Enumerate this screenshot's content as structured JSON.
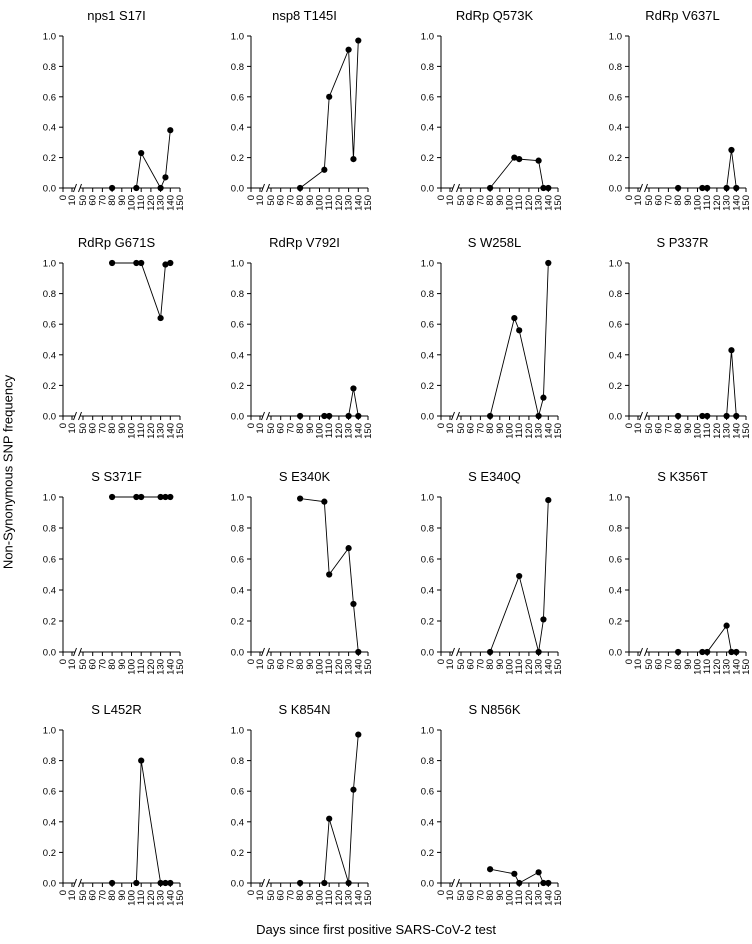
{
  "figure": {
    "ylabel": "Non-Synonymous SNP frequency",
    "xlabel": "Days since first positive SARS-CoV-2 test"
  },
  "chart_data": [
    {
      "type": "line",
      "title": "nps1 S17I",
      "x": [
        80,
        105,
        110,
        130,
        135,
        140
      ],
      "y": [
        0,
        0,
        0.23,
        0,
        0.07,
        0.38
      ],
      "xlim": [
        0,
        150
      ],
      "ylim": [
        0,
        1
      ],
      "xticks": [
        0,
        10,
        50,
        60,
        70,
        80,
        90,
        100,
        110,
        120,
        130,
        140,
        150
      ],
      "yticks": [
        "0.0",
        "0.2",
        "0.4",
        "0.6",
        "0.8",
        "1.0"
      ],
      "axis_break": true
    },
    {
      "type": "line",
      "title": "nsp8 T145I",
      "x": [
        80,
        105,
        110,
        130,
        135,
        140
      ],
      "y": [
        0,
        0.12,
        0.6,
        0.91,
        0.19,
        0.97
      ],
      "xlim": [
        0,
        150
      ],
      "ylim": [
        0,
        1
      ],
      "xticks": [
        0,
        10,
        50,
        60,
        70,
        80,
        90,
        100,
        110,
        120,
        130,
        140,
        150
      ],
      "yticks": [
        "0.0",
        "0.2",
        "0.4",
        "0.6",
        "0.8",
        "1.0"
      ],
      "axis_break": true
    },
    {
      "type": "line",
      "title": "RdRp Q573K",
      "x": [
        80,
        105,
        110,
        130,
        135,
        140
      ],
      "y": [
        0,
        0.2,
        0.19,
        0.18,
        0,
        0
      ],
      "xlim": [
        0,
        150
      ],
      "ylim": [
        0,
        1
      ],
      "xticks": [
        0,
        10,
        50,
        60,
        70,
        80,
        90,
        100,
        110,
        120,
        130,
        140,
        150
      ],
      "yticks": [
        "0.0",
        "0.2",
        "0.4",
        "0.6",
        "0.8",
        "1.0"
      ],
      "axis_break": true
    },
    {
      "type": "line",
      "title": "RdRp V637L",
      "x": [
        80,
        105,
        110,
        130,
        135,
        140
      ],
      "y": [
        0,
        0,
        0,
        0,
        0.25,
        0
      ],
      "xlim": [
        0,
        150
      ],
      "ylim": [
        0,
        1
      ],
      "xticks": [
        0,
        10,
        50,
        60,
        70,
        80,
        90,
        100,
        110,
        120,
        130,
        140,
        150
      ],
      "yticks": [
        "0.0",
        "0.2",
        "0.4",
        "0.6",
        "0.8",
        "1.0"
      ],
      "axis_break": true
    },
    {
      "type": "line",
      "title": "RdRp G671S",
      "x": [
        80,
        105,
        110,
        130,
        135,
        140
      ],
      "y": [
        1,
        1,
        1,
        0.64,
        0.99,
        1
      ],
      "xlim": [
        0,
        150
      ],
      "ylim": [
        0,
        1
      ],
      "xticks": [
        0,
        10,
        50,
        60,
        70,
        80,
        90,
        100,
        110,
        120,
        130,
        140,
        150
      ],
      "yticks": [
        "0.0",
        "0.2",
        "0.4",
        "0.6",
        "0.8",
        "1.0"
      ],
      "axis_break": true
    },
    {
      "type": "line",
      "title": "RdRp V792I",
      "x": [
        80,
        105,
        110,
        130,
        135,
        140
      ],
      "y": [
        0,
        0,
        0,
        0,
        0.18,
        0
      ],
      "xlim": [
        0,
        150
      ],
      "ylim": [
        0,
        1
      ],
      "xticks": [
        0,
        10,
        50,
        60,
        70,
        80,
        90,
        100,
        110,
        120,
        130,
        140,
        150
      ],
      "yticks": [
        "0.0",
        "0.2",
        "0.4",
        "0.6",
        "0.8",
        "1.0"
      ],
      "axis_break": true
    },
    {
      "type": "line",
      "title": "S W258L",
      "x": [
        80,
        105,
        110,
        130,
        135,
        140
      ],
      "y": [
        0,
        0.64,
        0.56,
        0,
        0.12,
        1
      ],
      "xlim": [
        0,
        150
      ],
      "ylim": [
        0,
        1
      ],
      "xticks": [
        0,
        10,
        50,
        60,
        70,
        80,
        90,
        100,
        110,
        120,
        130,
        140,
        150
      ],
      "yticks": [
        "0.0",
        "0.2",
        "0.4",
        "0.6",
        "0.8",
        "1.0"
      ],
      "axis_break": true
    },
    {
      "type": "line",
      "title": "S P337R",
      "x": [
        80,
        105,
        110,
        130,
        135,
        140
      ],
      "y": [
        0,
        0,
        0,
        0,
        0.43,
        0
      ],
      "xlim": [
        0,
        150
      ],
      "ylim": [
        0,
        1
      ],
      "xticks": [
        0,
        10,
        50,
        60,
        70,
        80,
        90,
        100,
        110,
        120,
        130,
        140,
        150
      ],
      "yticks": [
        "0.0",
        "0.2",
        "0.4",
        "0.6",
        "0.8",
        "1.0"
      ],
      "axis_break": true
    },
    {
      "type": "line",
      "title": "S S371F",
      "x": [
        80,
        105,
        110,
        130,
        135,
        140
      ],
      "y": [
        1,
        1,
        1,
        1,
        1,
        1
      ],
      "xlim": [
        0,
        150
      ],
      "ylim": [
        0,
        1
      ],
      "xticks": [
        0,
        10,
        50,
        60,
        70,
        80,
        90,
        100,
        110,
        120,
        130,
        140,
        150
      ],
      "yticks": [
        "0.0",
        "0.2",
        "0.4",
        "0.6",
        "0.8",
        "1.0"
      ],
      "axis_break": true
    },
    {
      "type": "line",
      "title": "S E340K",
      "x": [
        80,
        105,
        110,
        130,
        135,
        140
      ],
      "y": [
        0.99,
        0.97,
        0.5,
        0.67,
        0.31,
        0
      ],
      "xlim": [
        0,
        150
      ],
      "ylim": [
        0,
        1
      ],
      "xticks": [
        0,
        10,
        50,
        60,
        70,
        80,
        90,
        100,
        110,
        120,
        130,
        140,
        150
      ],
      "yticks": [
        "0.0",
        "0.2",
        "0.4",
        "0.6",
        "0.8",
        "1.0"
      ],
      "axis_break": true
    },
    {
      "type": "line",
      "title": "S E340Q",
      "x": [
        80,
        110,
        130,
        135,
        140
      ],
      "y": [
        0,
        0.49,
        0,
        0.21,
        0.98
      ],
      "xlim": [
        0,
        150
      ],
      "ylim": [
        0,
        1
      ],
      "xticks": [
        0,
        10,
        50,
        60,
        70,
        80,
        90,
        100,
        110,
        120,
        130,
        140,
        150
      ],
      "yticks": [
        "0.0",
        "0.2",
        "0.4",
        "0.6",
        "0.8",
        "1.0"
      ],
      "axis_break": true
    },
    {
      "type": "line",
      "title": "S K356T",
      "x": [
        80,
        105,
        110,
        130,
        135,
        140
      ],
      "y": [
        0,
        0,
        0,
        0.17,
        0,
        0
      ],
      "xlim": [
        0,
        150
      ],
      "ylim": [
        0,
        1
      ],
      "xticks": [
        0,
        10,
        50,
        60,
        70,
        80,
        90,
        100,
        110,
        120,
        130,
        140,
        150
      ],
      "yticks": [
        "0.0",
        "0.2",
        "0.4",
        "0.6",
        "0.8",
        "1.0"
      ],
      "axis_break": true
    },
    {
      "type": "line",
      "title": "S L452R",
      "x": [
        80,
        105,
        110,
        130,
        135,
        140
      ],
      "y": [
        0,
        0,
        0.8,
        0,
        0,
        0
      ],
      "xlim": [
        0,
        150
      ],
      "ylim": [
        0,
        1
      ],
      "xticks": [
        0,
        10,
        50,
        60,
        70,
        80,
        90,
        100,
        110,
        120,
        130,
        140,
        150
      ],
      "yticks": [
        "0.0",
        "0.2",
        "0.4",
        "0.6",
        "0.8",
        "1.0"
      ],
      "axis_break": true
    },
    {
      "type": "line",
      "title": "S K854N",
      "x": [
        80,
        105,
        110,
        130,
        135,
        140
      ],
      "y": [
        0,
        0,
        0.42,
        0,
        0.61,
        0.97
      ],
      "xlim": [
        0,
        150
      ],
      "ylim": [
        0,
        1
      ],
      "xticks": [
        0,
        10,
        50,
        60,
        70,
        80,
        90,
        100,
        110,
        120,
        130,
        140,
        150
      ],
      "yticks": [
        "0.0",
        "0.2",
        "0.4",
        "0.6",
        "0.8",
        "1.0"
      ],
      "axis_break": true
    },
    {
      "type": "line",
      "title": "S N856K",
      "x": [
        80,
        105,
        110,
        130,
        135,
        140
      ],
      "y": [
        0.09,
        0.06,
        0,
        0.07,
        0,
        0
      ],
      "xlim": [
        0,
        150
      ],
      "ylim": [
        0,
        1
      ],
      "xticks": [
        0,
        10,
        50,
        60,
        70,
        80,
        90,
        100,
        110,
        120,
        130,
        140,
        150
      ],
      "yticks": [
        "0.0",
        "0.2",
        "0.4",
        "0.6",
        "0.8",
        "1.0"
      ],
      "axis_break": true
    }
  ]
}
